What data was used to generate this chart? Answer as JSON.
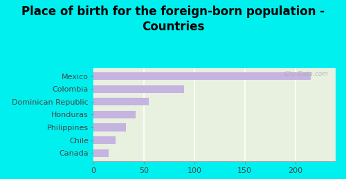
{
  "title": "Place of birth for the foreign-born population -\nCountries",
  "categories": [
    "Canada",
    "Chile",
    "Philippines",
    "Honduras",
    "Dominican Republic",
    "Colombia",
    "Mexico"
  ],
  "values": [
    15,
    22,
    32,
    42,
    55,
    90,
    215
  ],
  "bar_color": "#c5b3e0",
  "background_color": "#00f0f0",
  "plot_bg_color": "#e8f0e0",
  "xlim": [
    0,
    240
  ],
  "xticks": [
    0,
    50,
    100,
    150,
    200
  ],
  "watermark": "City-Data.com",
  "title_fontsize": 12,
  "label_fontsize": 8,
  "tick_fontsize": 8,
  "figsize": [
    5.0,
    2.6
  ],
  "dpi": 100
}
